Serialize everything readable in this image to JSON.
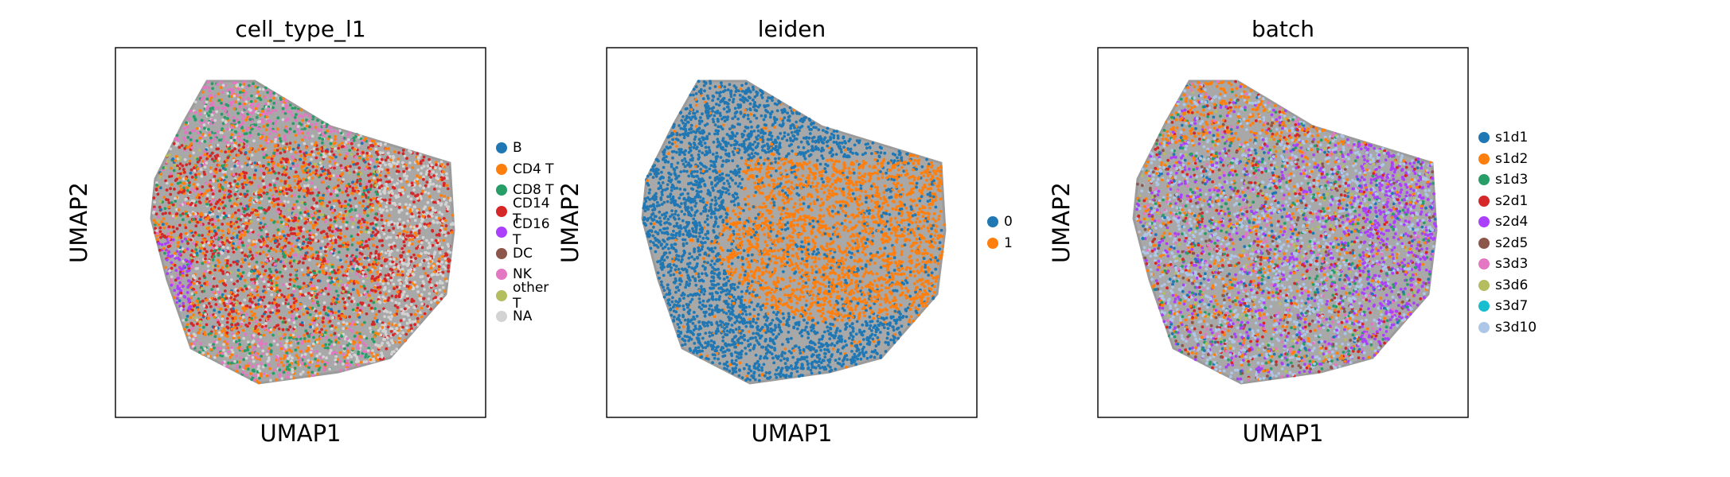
{
  "chart_data": [
    {
      "type": "scatter",
      "title": "cell_type_l1",
      "xlabel": "UMAP1",
      "ylabel": "UMAP2",
      "grid": false,
      "legend_position": "right",
      "categories": [
        "B",
        "CD4 T",
        "CD8 T",
        "CD14 T",
        "CD16 T",
        "DC",
        "NK",
        "other T",
        "NA"
      ],
      "colors": [
        "#1f77b4",
        "#ff7f0e",
        "#279e68",
        "#d62728",
        "#aa40fc",
        "#8c564b",
        "#e377c2",
        "#b5bd61",
        "#d3d3d3"
      ]
    },
    {
      "type": "scatter",
      "title": "leiden",
      "xlabel": "UMAP1",
      "ylabel": "UMAP2",
      "grid": false,
      "legend_position": "right",
      "categories": [
        "0",
        "1"
      ],
      "colors": [
        "#1f77b4",
        "#ff7f0e"
      ]
    },
    {
      "type": "scatter",
      "title": "batch",
      "xlabel": "UMAP1",
      "ylabel": "UMAP2",
      "grid": false,
      "legend_position": "right",
      "categories": [
        "s1d1",
        "s1d2",
        "s1d3",
        "s2d1",
        "s2d4",
        "s2d5",
        "s3d3",
        "s3d6",
        "s3d7",
        "s3d10"
      ],
      "colors": [
        "#1f77b4",
        "#ff7f0e",
        "#279e68",
        "#d62728",
        "#aa40fc",
        "#8c564b",
        "#e377c2",
        "#b5bd61",
        "#17becf",
        "#aec7e8"
      ]
    }
  ]
}
